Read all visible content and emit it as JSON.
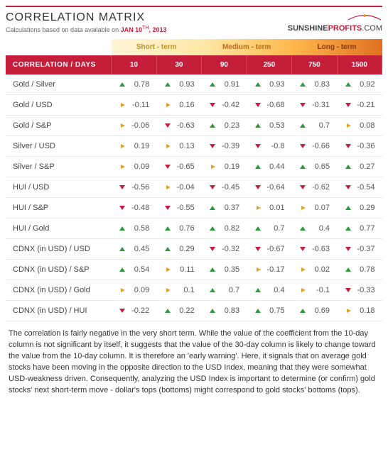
{
  "title": "CORRELATION MATRIX",
  "subtitle_prefix": "Calculations based on data available on ",
  "date_main": "JAN 10",
  "date_suffix": "TH",
  "date_year": ", 2013",
  "logo": {
    "part1": "SUNSHINE",
    "part2": "PROFITS",
    "part3": ".COM"
  },
  "terms": [
    {
      "label": "Short - term",
      "class": "term-short",
      "span": 2
    },
    {
      "label": "Medium - term",
      "class": "term-med",
      "span": 2
    },
    {
      "label": "Long - term",
      "class": "term-long",
      "span": 2
    }
  ],
  "header_first": "CORRELATION / DAYS",
  "day_columns": [
    "10",
    "30",
    "90",
    "250",
    "750",
    "1500"
  ],
  "arrow_colors": {
    "up": "#2a9d3a",
    "down": "#c41e3a",
    "side": "#e0a030"
  },
  "rows": [
    {
      "label": "Gold / Silver",
      "cells": [
        {
          "a": "up",
          "v": "0.78"
        },
        {
          "a": "up",
          "v": "0.93"
        },
        {
          "a": "up",
          "v": "0.91"
        },
        {
          "a": "up",
          "v": "0.93"
        },
        {
          "a": "up",
          "v": "0.83"
        },
        {
          "a": "up",
          "v": "0.92"
        }
      ]
    },
    {
      "label": "Gold / USD",
      "cells": [
        {
          "a": "side",
          "v": "-0.11"
        },
        {
          "a": "side",
          "v": "0.16"
        },
        {
          "a": "down",
          "v": "-0.42"
        },
        {
          "a": "down",
          "v": "-0.68"
        },
        {
          "a": "down",
          "v": "-0.31"
        },
        {
          "a": "down",
          "v": "-0.21"
        }
      ]
    },
    {
      "label": "Gold / S&P",
      "cells": [
        {
          "a": "side",
          "v": "-0.06"
        },
        {
          "a": "down",
          "v": "-0.63"
        },
        {
          "a": "up",
          "v": "0.23"
        },
        {
          "a": "up",
          "v": "0.53"
        },
        {
          "a": "up",
          "v": "0.7"
        },
        {
          "a": "side",
          "v": "0.08"
        }
      ]
    },
    {
      "label": "Silver / USD",
      "cells": [
        {
          "a": "side",
          "v": "0.19"
        },
        {
          "a": "side",
          "v": "0.13"
        },
        {
          "a": "down",
          "v": "-0.39"
        },
        {
          "a": "down",
          "v": "-0.8"
        },
        {
          "a": "down",
          "v": "-0.66"
        },
        {
          "a": "down",
          "v": "-0.36"
        }
      ]
    },
    {
      "label": "Silver / S&P",
      "cells": [
        {
          "a": "side",
          "v": "0.09"
        },
        {
          "a": "down",
          "v": "-0.65"
        },
        {
          "a": "side",
          "v": "0.19"
        },
        {
          "a": "up",
          "v": "0.44"
        },
        {
          "a": "up",
          "v": "0.65"
        },
        {
          "a": "up",
          "v": "0.27"
        }
      ]
    },
    {
      "label": "HUI / USD",
      "cells": [
        {
          "a": "down",
          "v": "-0.56"
        },
        {
          "a": "side",
          "v": "-0.04"
        },
        {
          "a": "down",
          "v": "-0.45"
        },
        {
          "a": "down",
          "v": "-0.64"
        },
        {
          "a": "down",
          "v": "-0.62"
        },
        {
          "a": "down",
          "v": "-0.54"
        }
      ]
    },
    {
      "label": "HUI / S&P",
      "cells": [
        {
          "a": "down",
          "v": "-0.48"
        },
        {
          "a": "down",
          "v": "-0.55"
        },
        {
          "a": "up",
          "v": "0.37"
        },
        {
          "a": "side",
          "v": "0.01"
        },
        {
          "a": "side",
          "v": "0.07"
        },
        {
          "a": "up",
          "v": "0.29"
        }
      ]
    },
    {
      "label": "HUI / Gold",
      "cells": [
        {
          "a": "up",
          "v": "0.58"
        },
        {
          "a": "up",
          "v": "0.76"
        },
        {
          "a": "up",
          "v": "0.82"
        },
        {
          "a": "up",
          "v": "0.7"
        },
        {
          "a": "up",
          "v": "0.4"
        },
        {
          "a": "up",
          "v": "0.77"
        }
      ]
    },
    {
      "label": "CDNX (in USD) / USD",
      "cells": [
        {
          "a": "up",
          "v": "0.45"
        },
        {
          "a": "up",
          "v": "0.29"
        },
        {
          "a": "down",
          "v": "-0.32"
        },
        {
          "a": "down",
          "v": "-0.67"
        },
        {
          "a": "down",
          "v": "-0.63"
        },
        {
          "a": "down",
          "v": "-0.37"
        }
      ]
    },
    {
      "label": "CDNX (in USD) / S&P",
      "cells": [
        {
          "a": "up",
          "v": "0.54"
        },
        {
          "a": "side",
          "v": "0.11"
        },
        {
          "a": "up",
          "v": "0.35"
        },
        {
          "a": "side",
          "v": "-0.17"
        },
        {
          "a": "side",
          "v": "0.02"
        },
        {
          "a": "up",
          "v": "0.78"
        }
      ]
    },
    {
      "label": "CDNX (in USD) / Gold",
      "cells": [
        {
          "a": "side",
          "v": "0.09"
        },
        {
          "a": "side",
          "v": "0.1"
        },
        {
          "a": "up",
          "v": "0.7"
        },
        {
          "a": "up",
          "v": "0.4"
        },
        {
          "a": "side",
          "v": "-0.1"
        },
        {
          "a": "down",
          "v": "-0.33"
        }
      ]
    },
    {
      "label": "CDNX (in USD) / HUI",
      "cells": [
        {
          "a": "down",
          "v": "-0.22"
        },
        {
          "a": "up",
          "v": "0.22"
        },
        {
          "a": "up",
          "v": "0.83"
        },
        {
          "a": "up",
          "v": "0.75"
        },
        {
          "a": "up",
          "v": "0.69"
        },
        {
          "a": "side",
          "v": "0.18"
        }
      ]
    }
  ],
  "footer": "The correlation is fairly negative in the very short term. While the value of the coefficient from the 10-day column is not significant by itself, it suggests that the value of the 30-day column is likely to change toward the value from the 10-day column. It is therefore an 'early warning'. Here, it signals that on average gold stocks have been moving in the opposite direction to the USD Index, meaning that they were somewhat USD-weakness driven. Consequently, analyzing the USD Index is important to determine (or confirm) gold stocks' next short-term move - dollar's tops (bottoms) might correspond to gold stocks' bottoms (tops).",
  "style": {
    "brand_red": "#c41e3a",
    "row_border": "#e8e8e8",
    "text_color": "#555",
    "title_fontsize": 16,
    "cell_fontsize": 11,
    "header_fontsize": 10
  }
}
